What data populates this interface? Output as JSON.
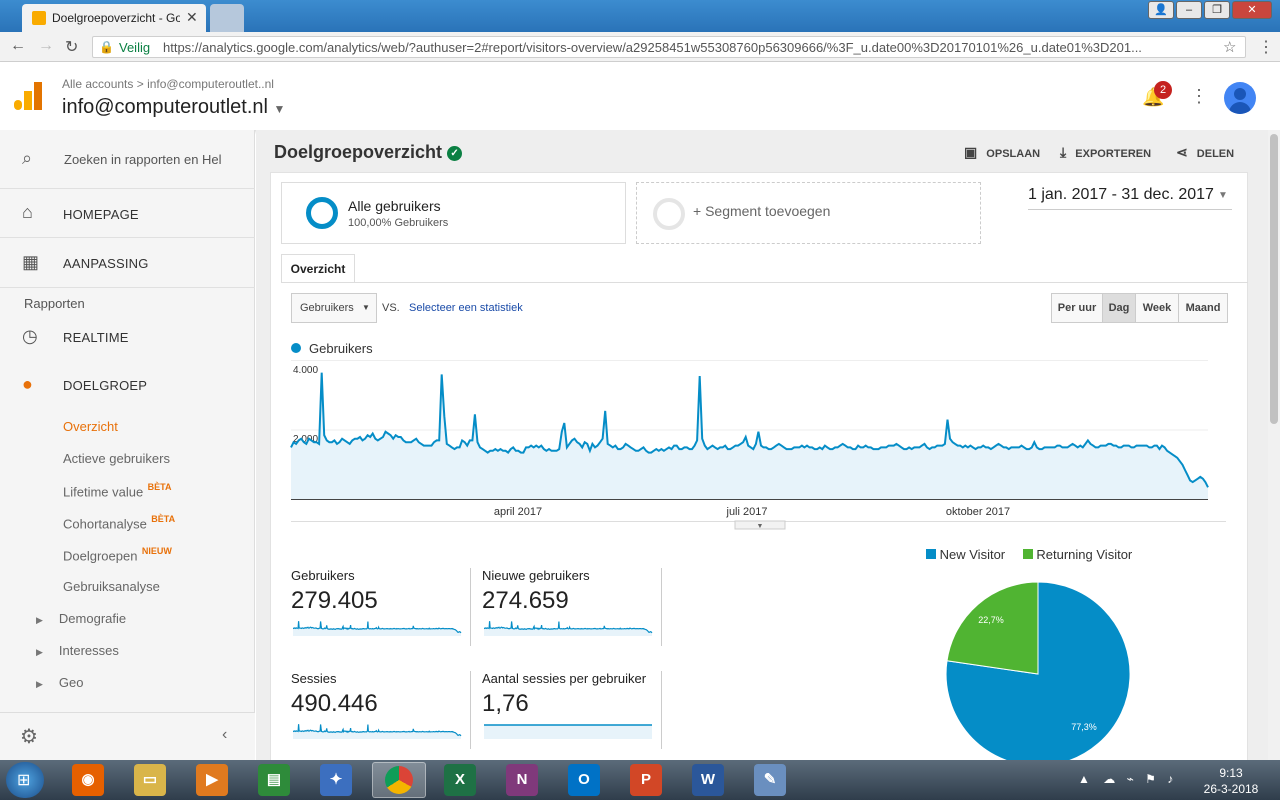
{
  "browser": {
    "tab_title": "Doelgroepoverzicht - Go",
    "secure_label": "Veilig",
    "url": "https://analytics.google.com/analytics/web/?authuser=2#report/visitors-overview/a29258451w55308760p56309666/%3F_u.date00%3D20170101%26_u.date01%3D201..."
  },
  "header": {
    "breadcrumb_root": "Alle accounts",
    "breadcrumb_account": "info@computeroutlet..nl",
    "account_title": "info@computeroutlet.nl",
    "notification_count": "2"
  },
  "sidebar": {
    "search_placeholder": "Zoeken in rapporten en Hel",
    "homepage": "HOMEPAGE",
    "customization": "AANPASSING",
    "reports_heading": "Rapporten",
    "realtime": "REALTIME",
    "audience": "DOELGROEP",
    "items": [
      {
        "label": "Overzicht"
      },
      {
        "label": "Actieve gebruikers"
      },
      {
        "label": "Lifetime value",
        "badge": "BÈTA"
      },
      {
        "label": "Cohortanalyse",
        "badge": "BÈTA"
      },
      {
        "label": "Doelgroepen",
        "badge": "NIEUW"
      },
      {
        "label": "Gebruiksanalyse"
      }
    ],
    "groups": [
      {
        "label": "Demografie"
      },
      {
        "label": "Interesses"
      },
      {
        "label": "Geo"
      }
    ]
  },
  "report": {
    "title": "Doelgroepoverzicht",
    "save": "OPSLAAN",
    "export": "EXPORTEREN",
    "share": "DELEN",
    "segment_name": "Alle gebruikers",
    "segment_pct": "100,00% Gebruikers",
    "add_segment": "+ Segment toevoegen",
    "date_range": "1 jan. 2017 - 31 dec. 2017",
    "tab": "Overzicht",
    "metric_select": "Gebruikers",
    "vs": "VS.",
    "select_stat": "Selecteer een statistiek",
    "granularity": [
      "Per uur",
      "Dag",
      "Week",
      "Maand"
    ],
    "active_granularity": "Dag"
  },
  "chart_data": [
    {
      "type": "line",
      "series": [
        {
          "name": "Gebruikers",
          "values": [
            1500,
            1650,
            1600,
            1700,
            1750,
            1650,
            1600,
            1750,
            1700,
            1650,
            1650,
            1600,
            3650,
            1850,
            1700,
            1650,
            1650,
            1700,
            1600,
            1650,
            1750,
            1700,
            1650,
            1600,
            1700,
            1750,
            1750,
            1800,
            1700,
            1750,
            1850,
            1800,
            1900,
            1750,
            1700,
            1750,
            1800,
            1950,
            1900,
            1850,
            1750,
            1850,
            1800,
            1800,
            1700,
            1650,
            1650,
            1650,
            1700,
            1750,
            1650,
            1600,
            1550,
            1550,
            1550,
            1550,
            1650,
            1700,
            1700,
            3600,
            2400,
            1600,
            1550,
            1500,
            1450,
            1500,
            1500,
            1700,
            1650,
            1550,
            1700,
            1700,
            2450,
            1650,
            1500,
            1450,
            1400,
            1350,
            1400,
            1400,
            1450,
            1400,
            1450,
            1400,
            1400,
            1350,
            1450,
            1500,
            1400,
            1400,
            1350,
            1350,
            1500,
            1500,
            1550,
            1500,
            1550,
            1500,
            1550,
            1450,
            1400,
            1450,
            1400,
            1400,
            1400,
            1450,
            1950,
            2200,
            1500,
            1600,
            1700,
            1750,
            1650,
            1600,
            1500,
            1650,
            1600,
            1400,
            1600,
            1500,
            1550,
            1650,
            1750,
            2550,
            1600,
            1550,
            1500,
            1550,
            1450,
            1450,
            1500,
            1600,
            1550,
            1500,
            1450,
            1400,
            1400,
            1450,
            1500,
            1400,
            1350,
            1350,
            1400,
            1450,
            1400,
            1450,
            1400,
            1450,
            1500,
            1450,
            1550,
            1550,
            1450,
            1450,
            1500,
            1500,
            1450,
            1450,
            1550,
            1700,
            3550,
            1750,
            1550,
            1450,
            1500,
            1550,
            1500,
            1450,
            1500,
            1500,
            1550,
            1450,
            1450,
            1500,
            1550,
            1550,
            1600,
            1650,
            1800,
            1550,
            1500,
            1450,
            1600,
            1950,
            1550,
            1500,
            1500,
            1450,
            1450,
            1500,
            1550,
            1600,
            1550,
            1500,
            1450,
            1450,
            1450,
            1500,
            1500,
            1500,
            1550,
            1500,
            1550,
            1500,
            1500,
            1450,
            1450,
            1500,
            1450,
            1550,
            1500,
            1450,
            1450,
            1500,
            1500,
            1550,
            1600,
            1550,
            1500,
            1500,
            1450,
            1450,
            1550,
            1500,
            1500,
            1550,
            1500,
            1500,
            1450,
            1450,
            1450,
            1500,
            1500,
            1500,
            1550,
            1550,
            1550,
            1600,
            1550,
            1500,
            1450,
            1450,
            1500,
            1450,
            1500,
            1500,
            1500,
            1550,
            1600,
            1500,
            1450,
            1500,
            1500,
            1550,
            1550,
            1550,
            1600,
            2300,
            1750,
            1650,
            1600,
            1550,
            1550,
            1500,
            1550,
            1500,
            1550,
            1500,
            1450,
            1500,
            1500,
            1550,
            1500,
            1500,
            1450,
            1500,
            1550,
            1600,
            1550,
            1500,
            1500,
            1450,
            1500,
            1500,
            1500,
            1500,
            1550,
            1500,
            1450,
            1450,
            1500,
            1650,
            1500,
            1450,
            1450,
            1500,
            1500,
            1500,
            1500,
            1500,
            1550,
            1550,
            1500,
            1500,
            1500,
            1550,
            1600,
            1550,
            1500,
            1550,
            1500,
            1600,
            1700,
            1600,
            1550,
            1500,
            1500,
            1550,
            1550,
            1550,
            1600,
            1600,
            1550,
            1550,
            1500,
            1500,
            1550,
            1550,
            1550,
            1500,
            1500,
            1550,
            1550,
            1550,
            1550,
            1550,
            1500,
            1500,
            1550,
            1550,
            1450,
            1550,
            1500,
            1400,
            1350,
            1300,
            1250,
            1200,
            1100,
            1000,
            850,
            700,
            550,
            500,
            550,
            600,
            650,
            600,
            500,
            350
          ]
        }
      ],
      "ylim": [
        0,
        4000
      ],
      "yticks": [
        "4.000",
        "2.000"
      ],
      "xticks": [
        "april 2017",
        "juli 2017",
        "oktober 2017"
      ]
    },
    {
      "type": "pie",
      "legend": [
        "New Visitor",
        "Returning Visitor"
      ],
      "colors": [
        "#058dc7",
        "#50b432"
      ],
      "values": [
        77.3,
        22.7
      ],
      "labels": [
        "77,3%",
        "22,7%"
      ]
    }
  ],
  "metrics": [
    {
      "label": "Gebruikers",
      "value": "279.405"
    },
    {
      "label": "Nieuwe gebruikers",
      "value": "274.659"
    },
    {
      "label": "Sessies",
      "value": "490.446"
    },
    {
      "label": "Aantal sessies per gebruiker",
      "value": "1,76"
    }
  ],
  "taskbar": {
    "time": "9:13",
    "date": "26-3-2018"
  }
}
